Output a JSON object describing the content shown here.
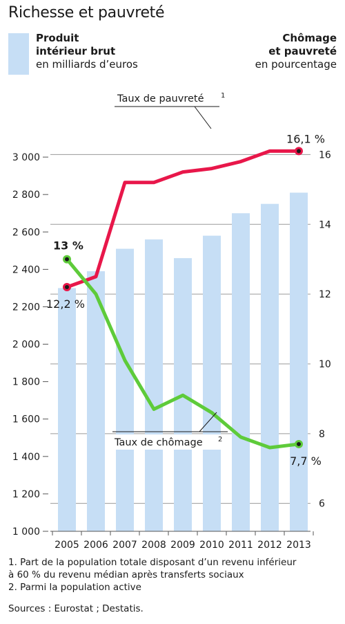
{
  "title": "Richesse et pauvreté",
  "legend_left": {
    "line1": "Produit",
    "line2": "intérieur brut",
    "line3": "en milliards d’euros",
    "color": "#c6def5"
  },
  "legend_right": {
    "line1": "Chômage",
    "line2": "et pauvreté",
    "line3": "en pourcentage"
  },
  "chart_data": {
    "type": "bar",
    "categories": [
      "2005",
      "2006",
      "2007",
      "2008",
      "2009",
      "2010",
      "2011",
      "2012",
      "2013"
    ],
    "bar_series": {
      "values": [
        2300,
        2390,
        2510,
        2560,
        2460,
        2580,
        2700,
        2750,
        2810
      ],
      "color": "#c6def5"
    },
    "left_axis": {
      "ylim": [
        1000,
        3200
      ],
      "ticks": [
        1000,
        1200,
        1400,
        1600,
        1800,
        2000,
        2200,
        2400,
        2600,
        2800,
        3000
      ],
      "tick_labels": [
        "1 000",
        "1 200",
        "1 400",
        "1 600",
        "1 800",
        "2 000",
        "2 200",
        "2 400",
        "2 600",
        "2 800",
        "3 000"
      ]
    },
    "right_axis": {
      "ylim": [
        5.2,
        17
      ],
      "ticks": [
        6,
        8,
        10,
        12,
        14,
        16
      ],
      "tick_labels": [
        "6",
        "8",
        "10",
        "12",
        "14",
        "16"
      ]
    },
    "line_series": [
      {
        "name": "Taux de pauvreté",
        "superscript": "1",
        "values": [
          12.2,
          12.5,
          15.2,
          15.2,
          15.5,
          15.6,
          15.8,
          16.1,
          16.1
        ],
        "color": "#e8174a",
        "start_label": "12,2 %",
        "end_label": "16,1 %"
      },
      {
        "name": "Taux de chômage",
        "superscript": "2",
        "values": [
          13.0,
          12.0,
          10.1,
          8.7,
          9.1,
          8.6,
          7.9,
          7.6,
          7.7
        ],
        "color": "#5ecb3a",
        "start_label": "13 %",
        "end_label": "7,7 %"
      }
    ]
  },
  "footnotes": [
    "1. Part de la population totale disposant d’un revenu inférieur",
    "à 60 % du revenu médian après transferts sociaux",
    "2. Parmi la population active"
  ],
  "sources": "Sources : Eurostat ; Destatis."
}
